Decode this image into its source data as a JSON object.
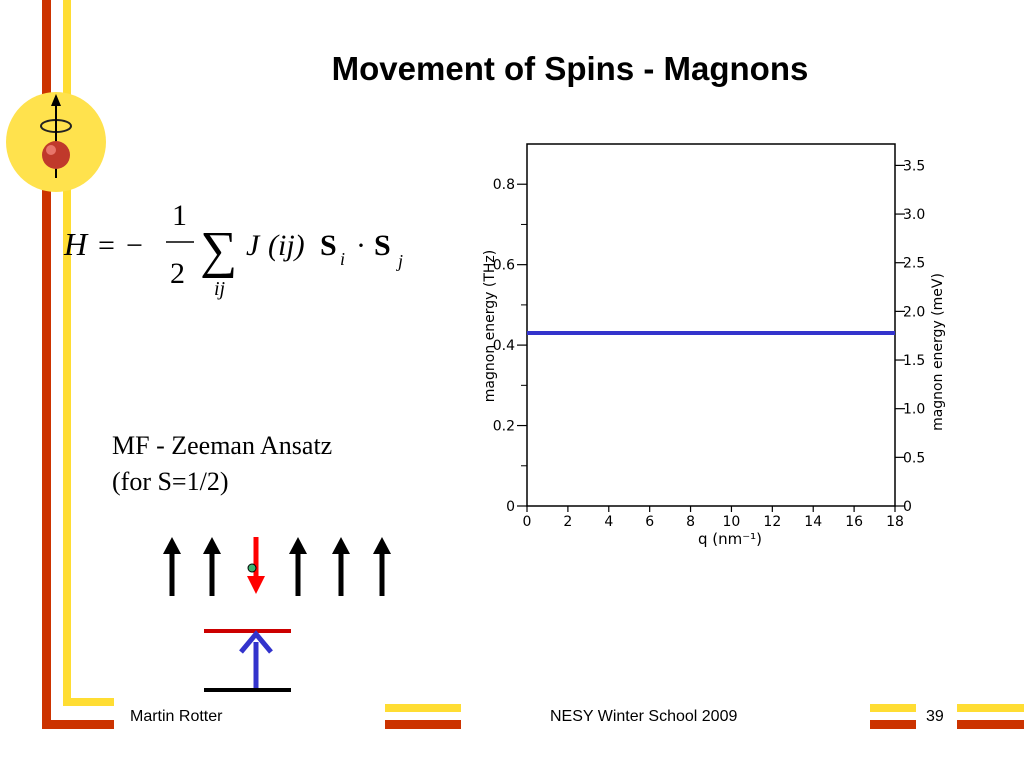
{
  "slide": {
    "title": "Movement of Spins - Magnons",
    "formula": {
      "lhs": "H",
      "equals": "=",
      "minus": "−",
      "numerator": "1",
      "denominator": "2",
      "sum": "∑",
      "sum_index": "ij",
      "J": "J",
      "paren_ij": "(ij)",
      "S": "S",
      "sub_i": "i",
      "dot": "·",
      "sub_j": "j"
    },
    "ansatz_line1": "MF - Zeeman Ansatz",
    "ansatz_line2": "(for  S=1/2)",
    "spins": [
      "up",
      "up",
      "down",
      "up",
      "up",
      "up"
    ],
    "colors": {
      "spin_up": "#000000",
      "spin_down": "#ff0000",
      "dot": "#3cb371",
      "transition": "#3333cc",
      "upper_level": "#cc0000",
      "lower_level": "#000000"
    }
  },
  "footer": {
    "author": "Martin Rotter",
    "event": "NESY Winter School 2009",
    "page": "39"
  },
  "theme": {
    "stripe_orange": "#cc3300",
    "stripe_yellow": "#ffdd33",
    "logo_circle": "#ffe24d"
  },
  "chart_data": {
    "type": "line",
    "xlabel": "q (nm⁻¹)",
    "ylabel": "magnon energy (THz)",
    "y2label": "magnon energy (meV)",
    "xlim": [
      0,
      18
    ],
    "ylim": [
      0,
      0.9
    ],
    "y2lim": [
      0,
      3.72
    ],
    "x_ticks": [
      0,
      2,
      4,
      6,
      8,
      10,
      12,
      14,
      16,
      18
    ],
    "y_ticks": [
      0,
      0.2,
      0.4,
      0.6,
      0.8
    ],
    "y_tick_labels": [
      "0",
      "0.2",
      "0.4",
      "0.6",
      "0.8"
    ],
    "y_minor_ticks": [
      0.1,
      0.3,
      0.5,
      0.7
    ],
    "y2_ticks": [
      0,
      0.5,
      1.0,
      1.5,
      2.0,
      2.5,
      3.0,
      3.5
    ],
    "y2_tick_labels": [
      "0",
      "0.5",
      "1.0",
      "1.5",
      "2.0",
      "2.5",
      "3.0",
      "3.5"
    ],
    "series": [
      {
        "x": [
          0,
          18
        ],
        "y": [
          0.43,
          0.43
        ],
        "color": "#3333cc"
      }
    ]
  }
}
